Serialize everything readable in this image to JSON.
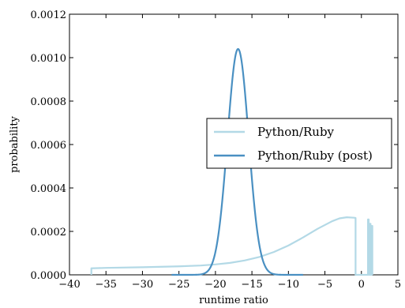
{
  "chart_data": {
    "type": "line",
    "title": "",
    "xlabel": "runtime ratio",
    "ylabel": "probability",
    "xlim": [
      -40,
      5
    ],
    "ylim": [
      0,
      0.0012
    ],
    "xticks": [
      "−40",
      "−35",
      "−30",
      "−25",
      "−20",
      "−15",
      "−10",
      "−5",
      "0",
      "5"
    ],
    "yticks": [
      "0.0000",
      "0.0002",
      "0.0004",
      "0.0006",
      "0.0008",
      "0.0010",
      "0.0012"
    ],
    "grid": false,
    "legend_position": "center-right",
    "series": [
      {
        "name": "Python/Ruby",
        "color": "#b3d9e6",
        "points": [
          [
            -37,
            0
          ],
          [
            -37,
            3e-05
          ],
          [
            -35,
            3.2e-05
          ],
          [
            -30,
            3.5e-05
          ],
          [
            -25,
            3.9e-05
          ],
          [
            -22,
            4.3e-05
          ],
          [
            -20,
            4.8e-05
          ],
          [
            -18,
            5.5e-05
          ],
          [
            -16,
            6.6e-05
          ],
          [
            -14,
            8.2e-05
          ],
          [
            -12,
            0.000105
          ],
          [
            -10,
            0.000135
          ],
          [
            -8,
            0.000172
          ],
          [
            -6,
            0.000212
          ],
          [
            -4,
            0.000247
          ],
          [
            -3,
            0.00026
          ],
          [
            -2,
            0.000265
          ],
          [
            -1,
            0.000263
          ],
          [
            -0.8,
            0.000262
          ],
          [
            -0.8,
            0
          ],
          [
            0.9,
            0
          ],
          [
            0.9,
            0.000255
          ],
          [
            1.0,
            0.000255
          ],
          [
            1.0,
            0
          ],
          [
            1.15,
            0
          ],
          [
            1.15,
            0.000235
          ],
          [
            1.25,
            0.000235
          ],
          [
            1.25,
            0
          ],
          [
            1.4,
            0
          ],
          [
            1.4,
            0.000225
          ],
          [
            1.5,
            0.000225
          ],
          [
            1.5,
            0
          ]
        ]
      },
      {
        "name": "Python/Ruby (post)",
        "color": "#4a90c2",
        "gaussian": {
          "mean": -16.9,
          "sd": 1.45,
          "peak": 0.00104,
          "from": -26,
          "to": -8
        }
      }
    ]
  }
}
